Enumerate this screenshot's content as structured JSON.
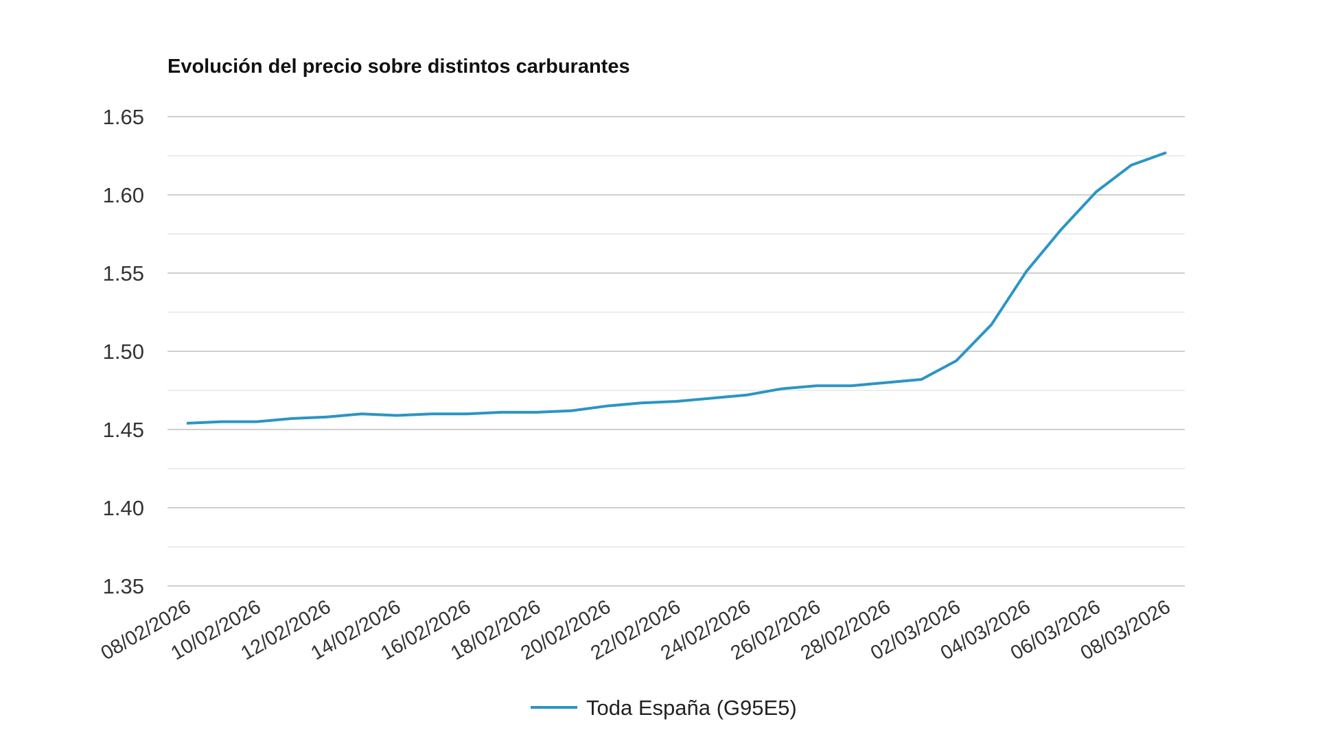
{
  "chart_data": {
    "type": "line",
    "title": "Evolución del precio sobre distintos carburantes",
    "xlabel": "",
    "ylabel": "",
    "ylim": [
      1.35,
      1.65
    ],
    "yticks": [
      "1.35",
      "1.40",
      "1.45",
      "1.50",
      "1.55",
      "1.60",
      "1.65"
    ],
    "xtick_labels": [
      "08/02/2026",
      "10/02/2026",
      "12/02/2026",
      "14/02/2026",
      "16/02/2026",
      "18/02/2026",
      "20/02/2026",
      "22/02/2026",
      "24/02/2026",
      "26/02/2026",
      "28/02/2026",
      "02/03/2026",
      "04/03/2026",
      "06/03/2026",
      "08/03/2026"
    ],
    "grid": true,
    "legend_position": "bottom",
    "x": [
      "08/02/2026",
      "09/02/2026",
      "10/02/2026",
      "11/02/2026",
      "12/02/2026",
      "13/02/2026",
      "14/02/2026",
      "15/02/2026",
      "16/02/2026",
      "17/02/2026",
      "18/02/2026",
      "19/02/2026",
      "20/02/2026",
      "21/02/2026",
      "22/02/2026",
      "23/02/2026",
      "24/02/2026",
      "25/02/2026",
      "26/02/2026",
      "27/02/2026",
      "28/02/2026",
      "01/03/2026",
      "02/03/2026",
      "03/03/2026",
      "04/03/2026",
      "05/03/2026",
      "06/03/2026",
      "07/03/2026",
      "08/03/2026"
    ],
    "series": [
      {
        "name": "Toda España (G95E5)",
        "color": "#2b95c4",
        "values": [
          1.454,
          1.455,
          1.455,
          1.457,
          1.458,
          1.46,
          1.459,
          1.46,
          1.46,
          1.461,
          1.461,
          1.462,
          1.465,
          1.467,
          1.468,
          1.47,
          1.472,
          1.476,
          1.478,
          1.478,
          1.48,
          1.482,
          1.494,
          1.517,
          1.551,
          1.578,
          1.602,
          1.619,
          1.627
        ]
      }
    ]
  }
}
